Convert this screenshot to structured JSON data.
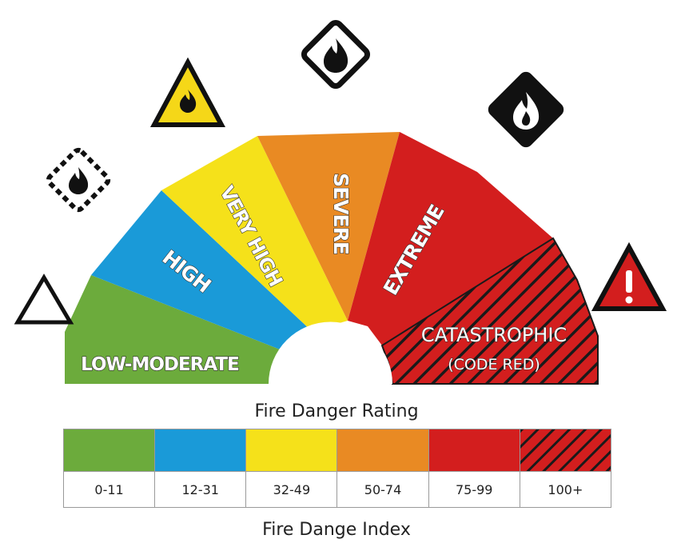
{
  "diagram": {
    "title": "Fire Danger Rating",
    "index_title": "Fire Dange Index",
    "segments": [
      {
        "id": "low-moderate",
        "label": "LOW-MODERATE",
        "range": "0-11",
        "color": "#6cab3c",
        "icon": "outline-triangle-icon"
      },
      {
        "id": "high",
        "label": "HIGH",
        "range": "12-31",
        "color": "#1a9ad8",
        "icon": "dashed-diamond-fire-icon"
      },
      {
        "id": "very-high",
        "label": "VERY HIGH",
        "range": "32-49",
        "color": "#f5e11a",
        "icon": "yellow-triangle-fire-icon"
      },
      {
        "id": "severe",
        "label": "SEVERE",
        "range": "50-74",
        "color": "#e98a23",
        "icon": "outlined-diamond-fire-icon"
      },
      {
        "id": "extreme",
        "label": "EXTREME",
        "range": "75-99",
        "color": "#d31e1e",
        "icon": "solid-diamond-fire-icon"
      },
      {
        "id": "catastrophic",
        "label": "CATASTROPHIC",
        "sublabel": "(CODE RED)",
        "range": "100+",
        "color": "#d31e1e",
        "pattern": "diagonal-hatch",
        "icon": "red-triangle-exclamation-icon"
      }
    ]
  }
}
